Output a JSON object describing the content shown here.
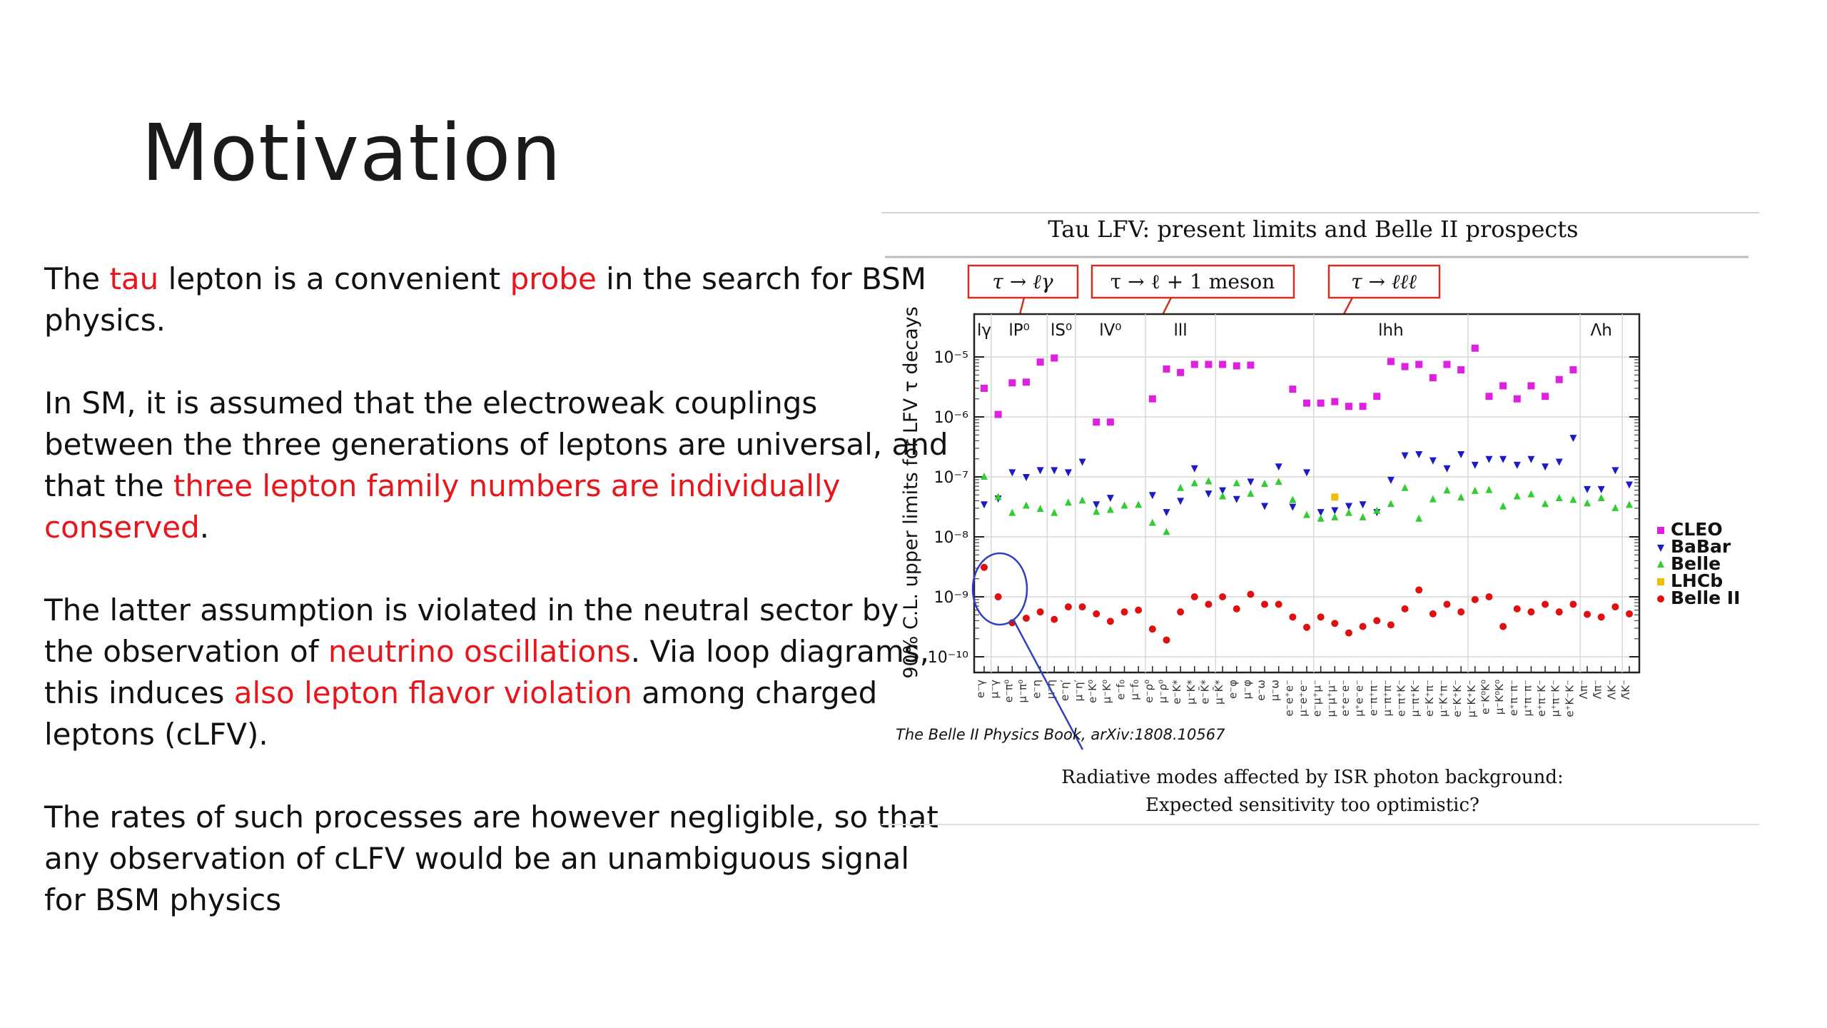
{
  "slide": {
    "title": "Motivation",
    "paragraphs": [
      [
        {
          "text": "The ",
          "red": false
        },
        {
          "text": "tau",
          "red": true
        },
        {
          "text": " lepton is a convenient ",
          "red": false
        },
        {
          "text": "probe",
          "red": true
        },
        {
          "text": " in the search for BSM physics.",
          "red": false
        }
      ],
      [
        {
          "text": "In SM, it is assumed that the electroweak couplings between the three generations of leptons are universal, and that the ",
          "red": false
        },
        {
          "text": "three lepton family numbers are individually conserved",
          "red": true
        },
        {
          "text": ".",
          "red": false
        }
      ],
      [
        {
          "text": "The latter assumption is violated in the neutral sector by the observation of ",
          "red": false
        },
        {
          "text": "neutrino oscillations",
          "red": true
        },
        {
          "text": ". Via loop diagrams, this induces ",
          "red": false
        },
        {
          "text": "also lepton flavor violation",
          "red": true
        },
        {
          "text": " among charged leptons (cLFV).",
          "red": false
        }
      ],
      [
        {
          "text": "The rates of such processes are however negligible, so that any observation of cLFV would be an unambiguous signal for BSM physics",
          "red": false
        }
      ]
    ],
    "colors": {
      "accent_red": "#e8151b"
    }
  },
  "figure": {
    "heading": "Tau LFV: present limits and Belle II prospects",
    "boxes": [
      "τ → ℓγ",
      "τ → ℓ + 1 meson",
      "τ → ℓℓℓ"
    ],
    "citation": "The Belle II Physics Book, arXiv:1808.10567",
    "caption_lines": [
      "Radiative modes affected by ISR photon background:",
      "Expected sensitivity too optimistic?"
    ]
  },
  "chart_data": {
    "type": "scatter",
    "ylabel": "90% C.L. upper limits for LFV τ decays",
    "y_scale": "log",
    "ylim": [
      1e-10,
      1e-05
    ],
    "y_ticks": [
      "10⁻⁵",
      "10⁻⁶",
      "10⁻⁷",
      "10⁻⁸",
      "10⁻⁹",
      "10⁻¹⁰"
    ],
    "groups": [
      "lγ",
      "lP⁰",
      "lS⁰",
      "lV⁰",
      "lll",
      "lhh",
      "Λh"
    ],
    "group_boundaries": [
      1.5,
      5.5,
      7.5,
      12.5,
      17.5,
      24.5,
      35.5,
      43.5,
      46.5
    ],
    "legend": {
      "placement": "right",
      "entries": [
        {
          "name": "CLEO",
          "color": "#e020e0",
          "marker": "square"
        },
        {
          "name": "BaBar",
          "color": "#1a1ac8",
          "marker": "triangle-down"
        },
        {
          "name": "Belle",
          "color": "#33cc33",
          "marker": "triangle-up"
        },
        {
          "name": "LHCb",
          "color": "#f0c000",
          "marker": "square"
        },
        {
          "name": "Belle II",
          "color": "#e01010",
          "marker": "circle"
        }
      ]
    },
    "x_count": 47,
    "series": [
      {
        "name": "CLEO",
        "points": [
          [
            1,
            3e-06
          ],
          [
            2,
            1.1e-06
          ],
          [
            3,
            3.7e-06
          ],
          [
            4,
            3.8e-06
          ],
          [
            5,
            8.2e-06
          ],
          [
            6,
            9.6e-06
          ],
          [
            9,
            8.2e-07
          ],
          [
            10,
            8.2e-07
          ],
          [
            13,
            2e-06
          ],
          [
            14,
            6.3e-06
          ],
          [
            15,
            5.5e-06
          ],
          [
            16,
            7.5e-06
          ],
          [
            17,
            7.5e-06
          ],
          [
            18,
            7.5e-06
          ],
          [
            19,
            7.1e-06
          ],
          [
            20,
            7.3e-06
          ],
          [
            23,
            2.9e-06
          ],
          [
            24,
            1.7e-06
          ],
          [
            25,
            1.7e-06
          ],
          [
            26,
            1.8e-06
          ],
          [
            27,
            1.5e-06
          ],
          [
            28,
            1.5e-06
          ],
          [
            29,
            2.2e-06
          ],
          [
            30,
            8.4e-06
          ],
          [
            31,
            6.9e-06
          ],
          [
            32,
            7.5e-06
          ],
          [
            33,
            4.5e-06
          ],
          [
            34,
            7.5e-06
          ],
          [
            35,
            6.1e-06
          ],
          [
            36,
            1.4e-05
          ],
          [
            37,
            2.2e-06
          ],
          [
            38,
            3.3e-06
          ],
          [
            39,
            2e-06
          ],
          [
            40,
            3.3e-06
          ],
          [
            41,
            2.2e-06
          ],
          [
            42,
            4.2e-06
          ],
          [
            43,
            6.1e-06
          ]
        ]
      },
      {
        "name": "BaBar",
        "points": [
          [
            1,
            3.5e-08
          ],
          [
            2,
            4.4e-08
          ],
          [
            3,
            1.2e-07
          ],
          [
            4,
            1e-07
          ],
          [
            5,
            1.3e-07
          ],
          [
            6,
            1.3e-07
          ],
          [
            7,
            1.2e-07
          ],
          [
            8,
            1.8e-07
          ],
          [
            9,
            3.5e-08
          ],
          [
            10,
            4.5e-08
          ],
          [
            13,
            5e-08
          ],
          [
            14,
            2.6e-08
          ],
          [
            15,
            4e-08
          ],
          [
            16,
            1.4e-07
          ],
          [
            17,
            5.3e-08
          ],
          [
            18,
            6e-08
          ],
          [
            19,
            4.3e-08
          ],
          [
            20,
            8.4e-08
          ],
          [
            21,
            3.3e-08
          ],
          [
            22,
            1.5e-07
          ],
          [
            23,
            3.2e-08
          ],
          [
            24,
            1.2e-07
          ],
          [
            25,
            2.6e-08
          ],
          [
            26,
            2.8e-08
          ],
          [
            27,
            3.3e-08
          ],
          [
            28,
            3.5e-08
          ],
          [
            29,
            2.6e-08
          ],
          [
            30,
            9e-08
          ],
          [
            31,
            2.3e-07
          ],
          [
            32,
            2.4e-07
          ],
          [
            33,
            1.9e-07
          ],
          [
            34,
            1.4e-07
          ],
          [
            35,
            2.4e-07
          ],
          [
            36,
            1.6e-07
          ],
          [
            37,
            2e-07
          ],
          [
            38,
            2e-07
          ],
          [
            39,
            1.6e-07
          ],
          [
            40,
            2e-07
          ],
          [
            41,
            1.5e-07
          ],
          [
            42,
            1.8e-07
          ],
          [
            43,
            4.5e-07
          ],
          [
            44,
            6.3e-08
          ],
          [
            45,
            6.3e-08
          ],
          [
            46,
            1.3e-07
          ],
          [
            47,
            7.5e-08
          ]
        ]
      },
      {
        "name": "Belle",
        "points": [
          [
            1,
            1e-07
          ],
          [
            2,
            4.6e-08
          ],
          [
            3,
            2.5e-08
          ],
          [
            4,
            3.3e-08
          ],
          [
            5,
            2.9e-08
          ],
          [
            6,
            2.5e-08
          ],
          [
            7,
            3.7e-08
          ],
          [
            8,
            4e-08
          ],
          [
            9,
            2.6e-08
          ],
          [
            10,
            2.8e-08
          ],
          [
            11,
            3.3e-08
          ],
          [
            12,
            3.4e-08
          ],
          [
            13,
            1.7e-08
          ],
          [
            14,
            1.2e-08
          ],
          [
            15,
            6.5e-08
          ],
          [
            16,
            7.8e-08
          ],
          [
            17,
            8.4e-08
          ],
          [
            18,
            4.7e-08
          ],
          [
            19,
            7.8e-08
          ],
          [
            20,
            5.2e-08
          ],
          [
            21,
            7.6e-08
          ],
          [
            22,
            8.2e-08
          ],
          [
            23,
            4.1e-08
          ],
          [
            24,
            2.3e-08
          ],
          [
            25,
            2e-08
          ],
          [
            26,
            2.1e-08
          ],
          [
            27,
            2.5e-08
          ],
          [
            28,
            2.1e-08
          ],
          [
            29,
            2.7e-08
          ],
          [
            30,
            3.5e-08
          ],
          [
            31,
            6.5e-08
          ],
          [
            32,
            2e-08
          ],
          [
            33,
            4.2e-08
          ],
          [
            34,
            5.9e-08
          ],
          [
            35,
            4.5e-08
          ],
          [
            36,
            5.8e-08
          ],
          [
            37,
            6e-08
          ],
          [
            38,
            3.2e-08
          ],
          [
            39,
            4.7e-08
          ],
          [
            40,
            5.1e-08
          ],
          [
            41,
            3.5e-08
          ],
          [
            42,
            4.4e-08
          ],
          [
            43,
            4.1e-08
          ],
          [
            44,
            3.6e-08
          ],
          [
            45,
            4.4e-08
          ],
          [
            46,
            3e-08
          ],
          [
            47,
            3.4e-08
          ]
        ]
      },
      {
        "name": "LHCb",
        "points": [
          [
            26,
            4.6e-08
          ]
        ]
      },
      {
        "name": "Belle II",
        "points": [
          [
            1,
            3.1e-09
          ],
          [
            2,
            1e-09
          ],
          [
            3,
            3.7e-10
          ],
          [
            4,
            4.4e-10
          ],
          [
            5,
            5.6e-10
          ],
          [
            6,
            4.2e-10
          ],
          [
            7,
            6.8e-10
          ],
          [
            8,
            6.8e-10
          ],
          [
            9,
            5.2e-10
          ],
          [
            10,
            3.9e-10
          ],
          [
            11,
            5.6e-10
          ],
          [
            12,
            6e-10
          ],
          [
            13,
            2.9e-10
          ],
          [
            14,
            1.9e-10
          ],
          [
            15,
            5.6e-10
          ],
          [
            16,
            1e-09
          ],
          [
            17,
            7.5e-10
          ],
          [
            18,
            1e-09
          ],
          [
            19,
            6.3e-10
          ],
          [
            20,
            1.1e-09
          ],
          [
            21,
            7.5e-10
          ],
          [
            22,
            7.5e-10
          ],
          [
            23,
            4.6e-10
          ],
          [
            24,
            3.1e-10
          ],
          [
            25,
            4.6e-10
          ],
          [
            26,
            3.6e-10
          ],
          [
            27,
            2.5e-10
          ],
          [
            28,
            3.2e-10
          ],
          [
            29,
            4e-10
          ],
          [
            30,
            3.4e-10
          ],
          [
            31,
            6.3e-10
          ],
          [
            32,
            1.3e-09
          ],
          [
            33,
            5.2e-10
          ],
          [
            34,
            7.5e-10
          ],
          [
            35,
            5.6e-10
          ],
          [
            36,
            9e-10
          ],
          [
            37,
            1e-09
          ],
          [
            38,
            3.2e-10
          ],
          [
            39,
            6.3e-10
          ],
          [
            40,
            5.6e-10
          ],
          [
            41,
            7.5e-10
          ],
          [
            42,
            5.6e-10
          ],
          [
            43,
            7.5e-10
          ],
          [
            44,
            5.1e-10
          ],
          [
            45,
            4.6e-10
          ],
          [
            46,
            6.8e-10
          ],
          [
            47,
            5.2e-10
          ]
        ]
      }
    ]
  }
}
